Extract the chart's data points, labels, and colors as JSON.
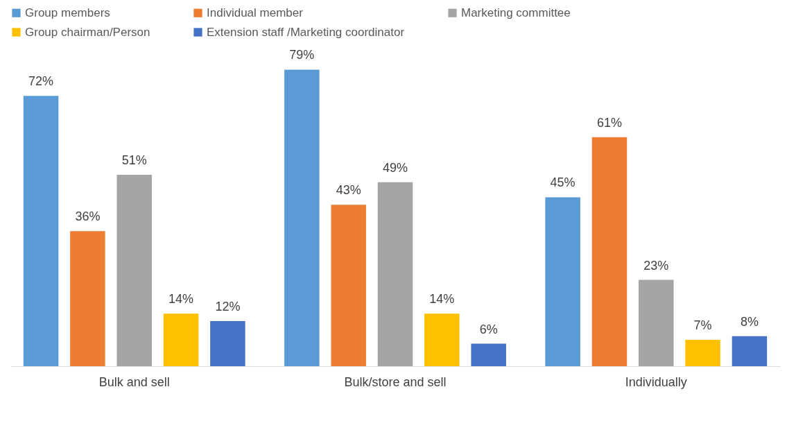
{
  "chart_data": {
    "type": "bar",
    "categories": [
      "Bulk and sell",
      "Bulk/store and sell",
      "Individually"
    ],
    "series": [
      {
        "name": "Group members",
        "color": "#5b9bd5",
        "values": [
          72,
          79,
          45
        ],
        "value_labels": [
          "72%",
          "79%",
          "45%"
        ]
      },
      {
        "name": "Individual member",
        "color": "#ed7d31",
        "values": [
          36,
          43,
          61
        ],
        "value_labels": [
          "36%",
          "43%",
          "61%"
        ]
      },
      {
        "name": "Marketing committee",
        "color": "#a5a5a5",
        "values": [
          51,
          49,
          23
        ],
        "value_labels": [
          "51%",
          "49%",
          "23%"
        ]
      },
      {
        "name": "Group chairman/Person",
        "color": "#ffc000",
        "values": [
          14,
          14,
          7
        ],
        "value_labels": [
          "14%",
          "14%",
          "7%"
        ]
      },
      {
        "name": "Extension staff /Marketing coordinator",
        "color": "#4472c4",
        "values": [
          12,
          6,
          8
        ],
        "value_labels": [
          "12%",
          "6%",
          "8%"
        ]
      }
    ],
    "legend": "top",
    "grid": false,
    "tick_labels": "x"
  }
}
